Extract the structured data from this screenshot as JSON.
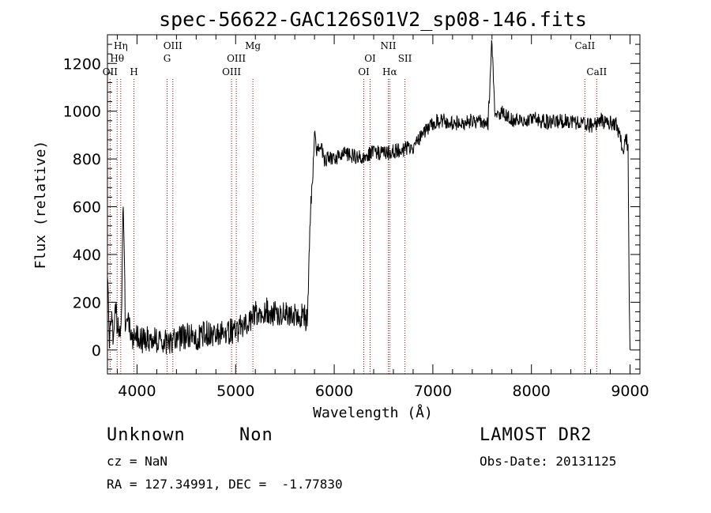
{
  "chart_data": {
    "type": "line",
    "title": "spec-56622-GAC126S01V2_sp08-146.fits",
    "xlabel": "Wavelength (Å)",
    "ylabel": "Flux (relative)",
    "xlim": [
      3700,
      9100
    ],
    "ylim": [
      -100,
      1320
    ],
    "x_ticks": [
      4000,
      5000,
      6000,
      7000,
      8000,
      9000
    ],
    "y_ticks": [
      0,
      200,
      400,
      600,
      800,
      1000,
      1200
    ],
    "grid": false,
    "series": [
      {
        "x": [
          3700,
          3720,
          3740,
          3760,
          3780,
          3800,
          3815,
          3830,
          3845,
          3860,
          3880,
          3900,
          3930,
          3960,
          4000,
          4050,
          4100,
          4200,
          4300,
          4400,
          4500,
          4600,
          4700,
          4800,
          4900,
          5000,
          5100,
          5150,
          5200,
          5300,
          5400,
          5500,
          5600,
          5700,
          5730,
          5745,
          5760,
          5780,
          5800,
          5830,
          5850,
          5900,
          6000,
          6100,
          6200,
          6300,
          6400,
          6500,
          6600,
          6700,
          6800,
          6900,
          7000,
          7100,
          7200,
          7300,
          7400,
          7500,
          7560,
          7600,
          7630,
          7700,
          7800,
          7900,
          8000,
          8100,
          8200,
          8300,
          8400,
          8500,
          8600,
          8700,
          8800,
          8850,
          8900,
          8930,
          8960,
          8980,
          8990,
          9000
        ],
        "y": [
          360,
          60,
          150,
          30,
          230,
          80,
          90,
          100,
          180,
          640,
          130,
          120,
          80,
          50,
          60,
          40,
          50,
          40,
          30,
          40,
          60,
          50,
          70,
          60,
          80,
          80,
          110,
          130,
          150,
          170,
          150,
          160,
          150,
          140,
          120,
          400,
          600,
          700,
          900,
          820,
          870,
          800,
          800,
          820,
          810,
          810,
          830,
          820,
          830,
          840,
          850,
          900,
          950,
          960,
          950,
          950,
          960,
          960,
          950,
          1300,
          960,
          1000,
          960,
          960,
          970,
          960,
          950,
          960,
          960,
          950,
          940,
          960,
          950,
          950,
          900,
          820,
          890,
          850,
          300,
          0
        ]
      }
    ],
    "line_markers": [
      {
        "label": "OII",
        "wavelength": 3727,
        "row": 3
      },
      {
        "label": "Hθ",
        "wavelength": 3798,
        "row": 2
      },
      {
        "label": "Hη",
        "wavelength": 3835,
        "row": 1
      },
      {
        "label": "H",
        "wavelength": 3969,
        "row": 3
      },
      {
        "label": "OIII",
        "wavelength": 4363,
        "row": 1
      },
      {
        "label": "G",
        "wavelength": 4305,
        "row": 2
      },
      {
        "label": "OIII",
        "wavelength": 4959,
        "row": 3
      },
      {
        "label": "OIII",
        "wavelength": 5007,
        "row": 2
      },
      {
        "label": "Mg",
        "wavelength": 5175,
        "row": 1
      },
      {
        "label": "OI",
        "wavelength": 6300,
        "row": 3
      },
      {
        "label": "OI",
        "wavelength": 6364,
        "row": 2
      },
      {
        "label": "NII",
        "wavelength": 6548,
        "row": 1
      },
      {
        "label": "Hα",
        "wavelength": 6563,
        "row": 3
      },
      {
        "label": "SII",
        "wavelength": 6717,
        "row": 2
      },
      {
        "label": "CaII",
        "wavelength": 8542,
        "row": 1
      },
      {
        "label": "CaII",
        "wavelength": 8662,
        "row": 3
      }
    ]
  },
  "info": {
    "class": "Unknown",
    "subclass": "Non",
    "cz": "cz = NaN",
    "coords": "RA = 127.34991, DEC =  -1.77830",
    "survey": "LAMOST DR2",
    "obs_date": "Obs-Date: 20131125"
  }
}
